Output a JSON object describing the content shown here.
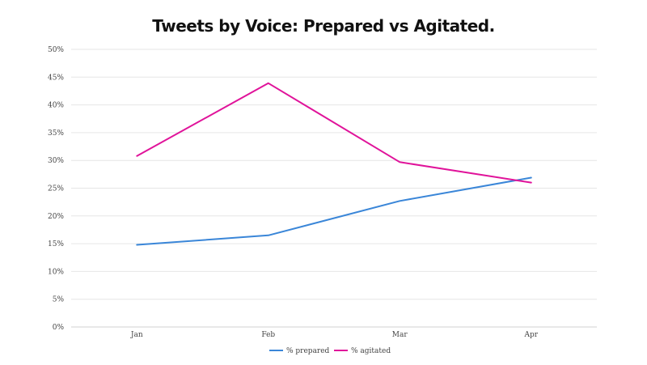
{
  "chart_data": {
    "type": "line",
    "title": "Tweets by Voice: Prepared vs Agitated.",
    "categories": [
      "Jan",
      "Feb",
      "Mar",
      "Apr"
    ],
    "series": [
      {
        "name": "% prepared",
        "color": "#3a86d8",
        "values": [
          14.8,
          16.5,
          22.7,
          26.9
        ]
      },
      {
        "name": "% agitated",
        "color": "#e0139a",
        "values": [
          30.8,
          43.9,
          29.7,
          26.0
        ]
      }
    ],
    "ylim": [
      0,
      50
    ],
    "yticks": [
      "0%",
      "5%",
      "10%",
      "15%",
      "20%",
      "25%",
      "30%",
      "35%",
      "40%",
      "45%",
      "50%"
    ],
    "grid": true,
    "legend": "bottom"
  }
}
